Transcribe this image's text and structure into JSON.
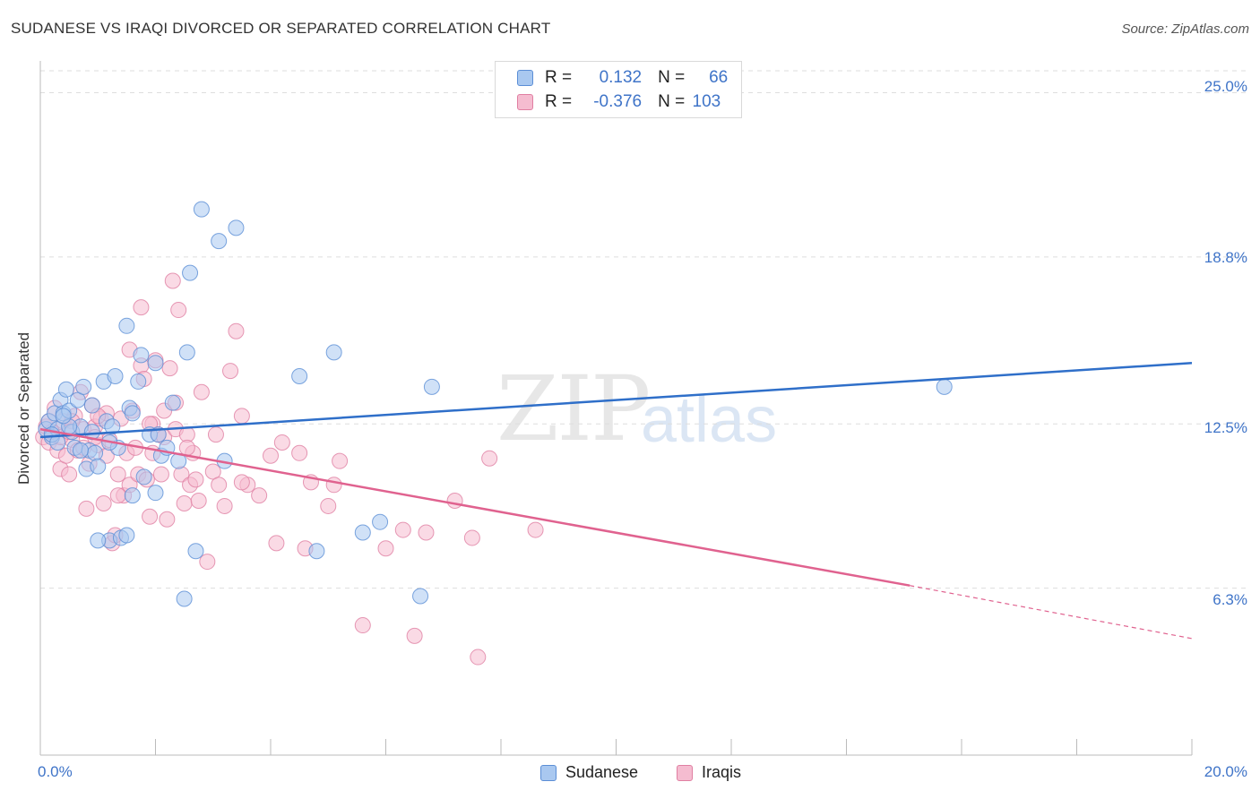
{
  "header": {
    "title": "SUDANESE VS IRAQI DIVORCED OR SEPARATED CORRELATION CHART",
    "source": "Source: ZipAtlas.com"
  },
  "watermark": {
    "part1": "ZIP",
    "part2": "atlas"
  },
  "legend_top": {
    "rows": [
      {
        "r_label": "R =",
        "r_value": "0.132",
        "n_label": "N =",
        "n_value": "66"
      },
      {
        "r_label": "R =",
        "r_value": "-0.376",
        "n_label": "N =",
        "n_value": "103"
      }
    ]
  },
  "legend_bottom": {
    "items": [
      "Sudanese",
      "Iraqis"
    ]
  },
  "colors": {
    "sudanese_fill": "#a9c8f0",
    "sudanese_stroke": "#5b8ed6",
    "sudanese_line": "#2f6fc9",
    "iraqis_fill": "#f5bcd0",
    "iraqis_stroke": "#e07fa2",
    "iraqis_line": "#e0628f",
    "tick_text": "#3f74c8"
  },
  "chart_data": {
    "type": "scatter",
    "title": "SUDANESE VS IRAQI DIVORCED OR SEPARATED CORRELATION CHART",
    "xlabel": "",
    "ylabel": "Divorced or Separated",
    "xlim": [
      0,
      20
    ],
    "ylim": [
      0,
      26.2
    ],
    "x_tick_labels": [
      "0.0%",
      "20.0%"
    ],
    "y_ticks": [
      6.3,
      12.5,
      18.8,
      25.0
    ],
    "y_tick_labels": [
      "6.3%",
      "12.5%",
      "18.8%",
      "25.0%"
    ],
    "grid": "horizontal dashed",
    "legend_position": "top-center",
    "series": [
      {
        "name": "Sudanese",
        "x": [
          0.1,
          0.15,
          0.2,
          0.25,
          0.3,
          0.35,
          0.4,
          0.45,
          0.5,
          0.55,
          0.6,
          0.65,
          0.7,
          0.75,
          0.8,
          0.85,
          0.9,
          0.95,
          1.0,
          1.1,
          1.15,
          1.2,
          1.25,
          1.3,
          1.35,
          1.4,
          1.5,
          1.55,
          1.6,
          1.7,
          1.75,
          1.8,
          1.9,
          2.0,
          2.05,
          2.1,
          2.2,
          2.3,
          2.4,
          2.5,
          2.55,
          2.6,
          2.7,
          2.8,
          3.1,
          3.4,
          4.5,
          5.1,
          5.6,
          5.9,
          6.6,
          6.8,
          0.2,
          0.3,
          0.5,
          0.7,
          1.0,
          1.2,
          1.5,
          2.0,
          3.2,
          4.8,
          15.7,
          0.4,
          0.9,
          1.6
        ],
        "y": [
          12.3,
          12.6,
          12.0,
          12.9,
          12.3,
          13.4,
          12.9,
          13.8,
          13.0,
          12.2,
          11.6,
          13.4,
          12.4,
          13.9,
          10.8,
          11.5,
          13.2,
          11.4,
          10.9,
          14.1,
          12.6,
          8.1,
          12.4,
          14.3,
          11.6,
          8.2,
          16.2,
          13.1,
          9.8,
          14.1,
          15.1,
          10.5,
          12.1,
          9.9,
          12.1,
          11.3,
          11.6,
          13.3,
          11.1,
          5.9,
          15.2,
          18.2,
          7.7,
          20.6,
          19.4,
          19.9,
          14.3,
          15.2,
          8.4,
          8.8,
          6.0,
          13.9,
          12.1,
          11.8,
          12.4,
          11.5,
          8.1,
          11.8,
          8.3,
          14.8,
          11.1,
          7.7,
          13.9,
          12.8,
          12.2,
          12.9
        ]
      },
      {
        "name": "Iraqis",
        "x": [
          0.05,
          0.1,
          0.15,
          0.2,
          0.25,
          0.3,
          0.35,
          0.4,
          0.45,
          0.5,
          0.55,
          0.6,
          0.65,
          0.7,
          0.75,
          0.8,
          0.85,
          0.9,
          0.95,
          1.0,
          1.05,
          1.1,
          1.15,
          1.2,
          1.25,
          1.3,
          1.35,
          1.4,
          1.45,
          1.5,
          1.55,
          1.6,
          1.65,
          1.7,
          1.75,
          1.8,
          1.85,
          1.9,
          1.95,
          2.0,
          2.05,
          2.1,
          2.15,
          2.2,
          2.25,
          2.3,
          2.35,
          2.4,
          2.45,
          2.5,
          2.55,
          2.6,
          2.65,
          2.7,
          2.8,
          2.9,
          3.0,
          3.1,
          3.2,
          3.3,
          3.4,
          3.5,
          3.6,
          3.8,
          4.0,
          4.2,
          4.5,
          4.7,
          5.0,
          5.2,
          6.0,
          6.3,
          6.5,
          7.2,
          7.5,
          7.8,
          8.6,
          0.2,
          0.35,
          0.55,
          0.75,
          0.95,
          1.15,
          1.35,
          1.55,
          1.75,
          1.95,
          2.15,
          2.35,
          2.55,
          2.75,
          3.05,
          3.5,
          4.1,
          4.6,
          5.1,
          5.6,
          6.7,
          7.6,
          0.15,
          0.5,
          1.0,
          1.9
        ],
        "y": [
          12.0,
          12.4,
          11.8,
          12.2,
          13.1,
          11.5,
          10.8,
          12.6,
          11.3,
          10.6,
          11.9,
          12.8,
          11.5,
          13.7,
          12.3,
          9.3,
          11.0,
          13.2,
          12.4,
          11.7,
          12.7,
          9.5,
          11.3,
          11.9,
          8.0,
          8.3,
          10.6,
          12.7,
          9.8,
          11.4,
          10.2,
          13.0,
          11.6,
          10.6,
          14.7,
          14.2,
          10.4,
          9.0,
          11.4,
          14.9,
          12.1,
          10.6,
          12.0,
          8.9,
          14.6,
          17.9,
          12.3,
          16.8,
          10.6,
          9.5,
          12.1,
          10.2,
          11.4,
          10.4,
          13.7,
          7.3,
          10.7,
          10.2,
          9.4,
          14.5,
          16.0,
          12.8,
          10.2,
          9.8,
          11.3,
          11.8,
          11.4,
          10.3,
          9.4,
          11.1,
          7.8,
          8.5,
          4.5,
          9.6,
          8.2,
          11.2,
          8.5,
          12.2,
          12.0,
          12.6,
          11.6,
          12.0,
          12.9,
          9.8,
          15.3,
          16.9,
          12.5,
          13.0,
          13.3,
          11.6,
          9.6,
          12.1,
          10.3,
          8.0,
          7.8,
          10.2,
          4.9,
          8.4,
          3.7,
          12.6,
          12.2,
          12.8,
          12.5
        ]
      }
    ],
    "trend_lines": [
      {
        "name": "Sudanese",
        "x": [
          0,
          20
        ],
        "y": [
          12.0,
          14.8
        ]
      },
      {
        "name": "Iraqis",
        "x": [
          0,
          15.1
        ],
        "y": [
          12.3,
          6.4
        ],
        "dashed_extension_to": [
          20,
          4.4
        ]
      }
    ]
  }
}
